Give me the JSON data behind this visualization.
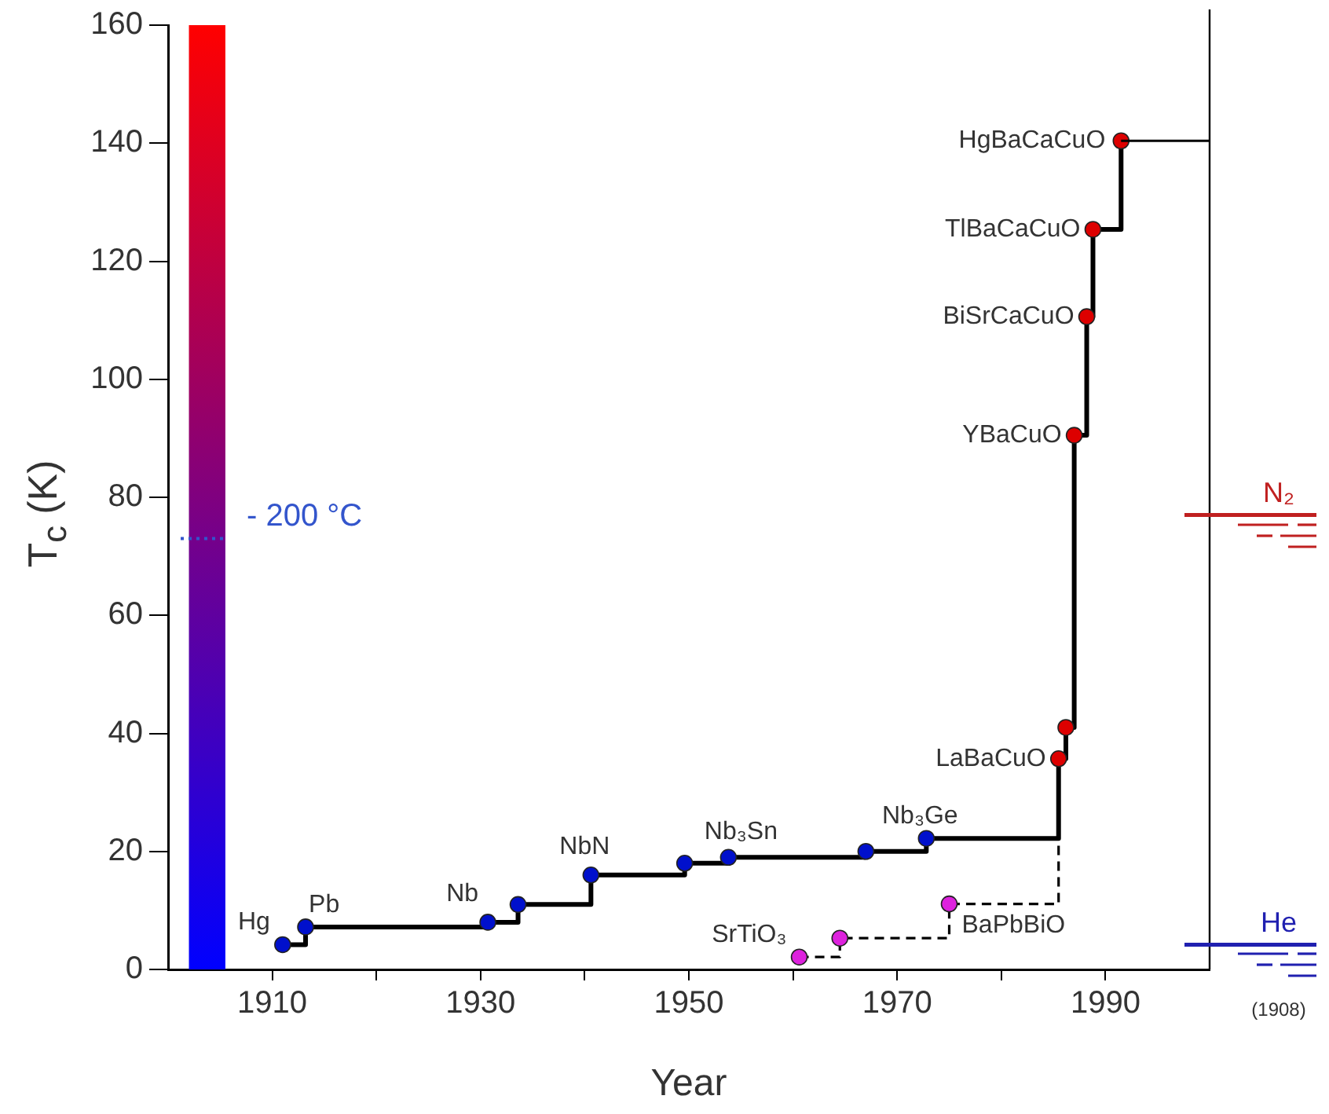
{
  "chart_data": {
    "type": "step",
    "xlabel": "Year",
    "ylabel": "T$_{c}$ (K)",
    "xlim": [
      1900,
      2000
    ],
    "xticks": [
      1910,
      {
        "value": 1920,
        "label": null
      },
      1930,
      {
        "value": 1940,
        "label": null
      },
      1950,
      {
        "value": 1960,
        "label": null
      },
      1970,
      {
        "value": 1980,
        "label": null
      },
      1990
    ],
    "ylim": [
      0,
      160
    ],
    "bands": [
      {
        "axis": "x",
        "from": 1902,
        "to": 1905.5
      }
    ],
    "yticks": [
      0,
      20,
      40,
      60,
      80,
      100,
      120,
      140,
      160
    ],
    "grid": false,
    "legend": false,
    "marker": "circle",
    "series": [
      {
        "color": "#000000",
        "line_style": "solid",
        "x": [
          1911,
          1913.2,
          1930.7,
          1933.6,
          1940.6,
          1949.6,
          1953.8,
          1967,
          1972.8,
          1985.5,
          1986.2,
          1987,
          1988.2,
          1988.8,
          1991.5
        ],
        "values": [
          4.2,
          7.2,
          8,
          11,
          16,
          18,
          19,
          20,
          22.2,
          35.7,
          41,
          90.5,
          110.6,
          125.4,
          140.4
        ],
        "colors": [
          "#0010cc",
          "#0010cc",
          "#0010cc",
          "#0010cc",
          "#0010cc",
          "#0010cc",
          "#0010cc",
          "#0010cc",
          "#0010cc",
          "#dd0000",
          "#dd0000",
          "#dd0000",
          "#dd0000",
          "#dd0000",
          "#dd0000"
        ]
      },
      {
        "color": "#000000",
        "line_style": "dashed",
        "x": [
          1960.6,
          1964.5,
          1975,
          1985.5
        ],
        "values": [
          2.1,
          5.3,
          11.1,
          22.2
        ],
        "colors": [
          "#dd22dd",
          "#dd22dd",
          "#dd22dd",
          null
        ]
      }
    ],
    "annotations": [
      {
        "text": "Hg",
        "x": 1911,
        "y": 4.2
      },
      {
        "text": "Pb",
        "x": 1913.2,
        "y": 7.2
      },
      {
        "text": "Nb",
        "x": 1930.7,
        "y": 8
      },
      {
        "text": "NbN",
        "x": 1940.6,
        "y": 16
      },
      {
        "text": "Nb₃Sn",
        "x": 1953.8,
        "y": 19
      },
      {
        "text": "Nb₃Ge",
        "x": 1972.8,
        "y": 22.2
      },
      {
        "text": "SrTiO₃",
        "x": 1960.6,
        "y": 2.1
      },
      {
        "text": "BaPbBiO",
        "x": 1975,
        "y": 11.1
      },
      {
        "text": "LaBaCuO",
        "x": 1985.5,
        "y": 35.7
      },
      {
        "text": "YBaCuO",
        "x": 1987,
        "y": 90.5
      },
      {
        "text": "BiSrCaCuO",
        "x": 1988.2,
        "y": 110.6
      },
      {
        "text": "TlBaCaCuO",
        "x": 1988.8,
        "y": 125.4
      },
      {
        "text": "HgBaCaCuO",
        "x": 1991.5,
        "y": 140.4
      },
      "(1908)"
    ],
    "ref_lines": [
      {
        "axis": "y",
        "value": 73,
        "label": "- 200 °C",
        "color": "#3355cc",
        "line_style": "dotted"
      },
      {
        "axis": "y",
        "value": 77,
        "label": "N₂",
        "color": "#c02020",
        "line_style": "solid"
      },
      {
        "axis": "y",
        "value": 4.2,
        "label": "He",
        "color": "#2020b0",
        "line_style": "solid"
      }
    ]
  }
}
